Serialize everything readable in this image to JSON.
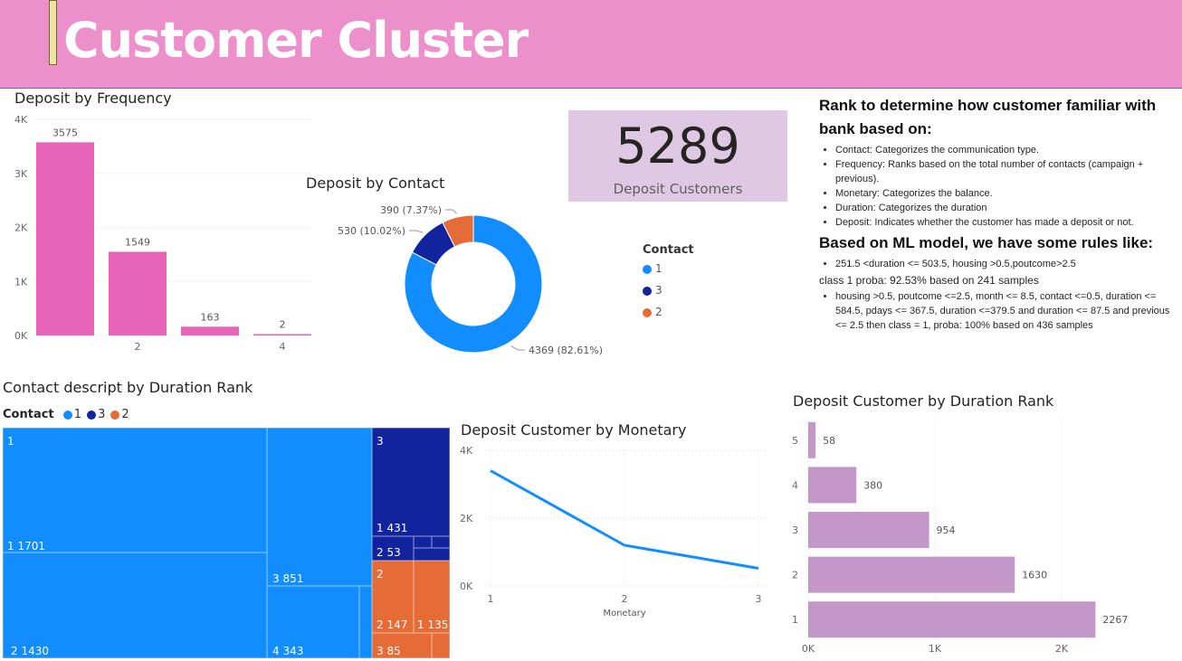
{
  "header": {
    "title": "Customer Cluster"
  },
  "colors": {
    "pink": "#e764b8",
    "blue": "#118dff",
    "navy": "#12239e",
    "orange": "#e66c37",
    "lavender": "#c397c7",
    "header_bg": "#ec8fcb",
    "card_bg": "#dfc8e3"
  },
  "card": {
    "value": "5289",
    "label": "Deposit Customers"
  },
  "rules": {
    "heading1": "Rank to determine how customer familiar with bank based on:",
    "items1": [
      "Contact: Categorizes the communication type.",
      "Frequency: Ranks based on the total number of contacts (campaign + previous).",
      "Monetary: Categorizes the balance.",
      "Duration: Categorizes the duration",
      "Deposit: Indicates whether the customer has made a deposit or not."
    ],
    "heading2": "Based on ML model, we have some rules like:",
    "rule1": "251.5 <duration <= 503.5, housing >0.5,poutcome>2.5",
    "rule1_tail": "class 1 proba: 92.53% based on 241 samples",
    "rule2": "housing >0.5, poutcome <=2.5, month <= 8.5, contact <=0.5, duration <= 584.5, pdays <= 367.5, duration <=379.5 and duration <= 87.5 and previous <= 2.5 then class = 1, proba: 100% based on 436 samples"
  },
  "chart_data": [
    {
      "id": "freq",
      "type": "bar",
      "title": "Deposit by Frequency",
      "categories": [
        "1",
        "2",
        "3",
        "4"
      ],
      "values": [
        3575,
        1549,
        163,
        2
      ],
      "x_tick_labels": [
        "",
        "2",
        "",
        "4"
      ],
      "y_ticks": [
        "0K",
        "1K",
        "2K",
        "3K",
        "4K"
      ],
      "ylim": [
        0,
        4000
      ],
      "color": "#e764b8",
      "grid": true
    },
    {
      "id": "contact",
      "type": "pie",
      "title": "Deposit by Contact",
      "legend_title": "Contact",
      "slices": [
        {
          "name": "1",
          "value": 4369,
          "label": "4369 (82.61%)",
          "color": "#118dff"
        },
        {
          "name": "3",
          "value": 530,
          "label": "530 (10.02%)",
          "color": "#12239e"
        },
        {
          "name": "2",
          "value": 390,
          "label": "390 (7.37%)",
          "color": "#e66c37"
        }
      ]
    },
    {
      "id": "treemap",
      "type": "treemap",
      "title": "Contact descript by Duration Rank",
      "legend_title": "Contact",
      "legend": [
        {
          "name": "1",
          "color": "#118dff"
        },
        {
          "name": "3",
          "color": "#12239e"
        },
        {
          "name": "2",
          "color": "#e66c37"
        }
      ],
      "labels": [
        "1",
        "1 1701",
        "2 1430",
        "3 851",
        "4 343",
        "3",
        "1 431",
        "2 53",
        "2",
        "2 147",
        "1 135",
        "3 85"
      ]
    },
    {
      "id": "monetary",
      "type": "line",
      "title": "Deposit Customer by Monetary",
      "x": [
        1,
        2,
        3
      ],
      "y": [
        3400,
        1200,
        520
      ],
      "xlabel": "Monetary",
      "y_ticks": [
        "0K",
        "2K",
        "4K"
      ],
      "ylim": [
        0,
        4000
      ],
      "color": "#118dff",
      "grid": true
    },
    {
      "id": "duration",
      "type": "bar",
      "orientation": "horizontal",
      "title": "Deposit Customer by Duration Rank",
      "categories": [
        "5",
        "4",
        "3",
        "2",
        "1"
      ],
      "values": [
        58,
        380,
        954,
        1630,
        2267
      ],
      "x_ticks": [
        "0K",
        "1K",
        "2K"
      ],
      "xlim": [
        0,
        2300
      ],
      "color": "#c397c7",
      "grid": true
    }
  ]
}
